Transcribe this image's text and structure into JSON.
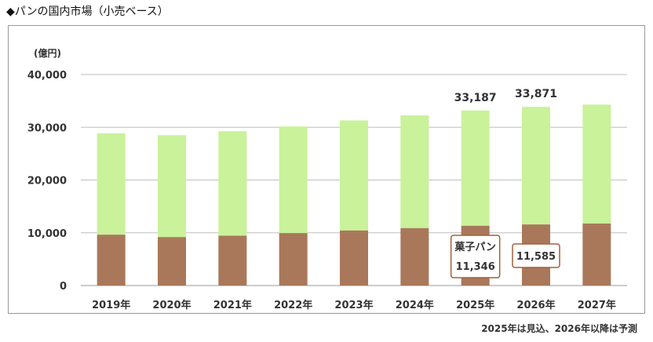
{
  "page": {
    "title": "◆パンの国内市場（小売ベース）",
    "footnote": "2025年は見込、2026年以降は予測"
  },
  "chart_data": {
    "type": "bar",
    "stacked": true,
    "title": "◆パンの国内市場（小売ベース）",
    "unit": "(億円)",
    "categories": [
      "2019年",
      "2020年",
      "2021年",
      "2022年",
      "2023年",
      "2024年",
      "2025年",
      "2026年",
      "2027年"
    ],
    "series": [
      {
        "name": "菓子パン",
        "color": "#a9785a",
        "values": [
          9650,
          9200,
          9450,
          9950,
          10450,
          10900,
          11346,
          11585,
          11750
        ]
      },
      {
        "name": "",
        "color": "#c9f29a",
        "values": [
          19200,
          19300,
          19800,
          20200,
          20850,
          21350,
          21841,
          22286,
          22550
        ]
      }
    ],
    "totals_labeled": {
      "2025年": "33,187",
      "2026年": "33,871"
    },
    "callouts": [
      {
        "category": "2025年",
        "label": "菓子パン",
        "value": "11,346"
      },
      {
        "category": "2026年",
        "label": "",
        "value": "11,585"
      }
    ],
    "ylim": [
      0,
      40000
    ],
    "yticks": [
      0,
      10000,
      20000,
      30000,
      40000
    ],
    "ytick_labels": [
      "0",
      "10,000",
      "20,000",
      "30,000",
      "40,000"
    ],
    "grid": true,
    "callout_border_color": "#a0603f"
  }
}
